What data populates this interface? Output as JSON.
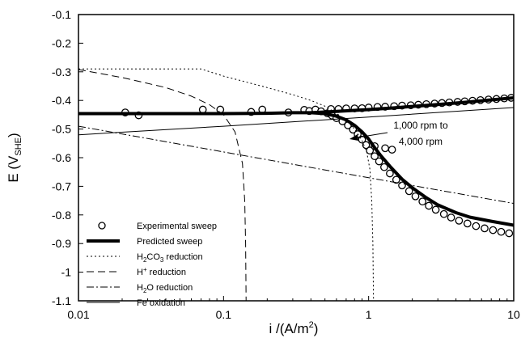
{
  "chart_data": {
    "type": "scatter",
    "xscale": "log",
    "xlim": [
      0.01,
      10
    ],
    "ylim": [
      -1.1,
      -0.1
    ],
    "xticks": [
      "0.01",
      "0.1",
      "1",
      "10"
    ],
    "yticks": [
      "-0.1",
      "-0.2",
      "-0.3",
      "-0.4",
      "-0.5",
      "-0.6",
      "-0.7",
      "-0.8",
      "-0.9",
      "-1",
      "-1.1"
    ],
    "xlabel": {
      "main": "i /(A/m",
      "sup": "2",
      "end": ")"
    },
    "ylabel": {
      "main": "E  (V",
      "sub": "SHE",
      "end": ")"
    },
    "grid": false,
    "legend_position": "lower-left",
    "annotation": {
      "line1": "1,000 rpm to",
      "line2": "4,000 rpm",
      "x": 1.3,
      "y": -0.575
    },
    "series": [
      {
        "name": "Experimental sweep",
        "style": "markers",
        "points": [
          [
            0.021,
            -0.442
          ],
          [
            0.026,
            -0.452
          ],
          [
            0.072,
            -0.432
          ],
          [
            0.095,
            -0.432
          ],
          [
            0.155,
            -0.44
          ],
          [
            0.185,
            -0.432
          ],
          [
            0.28,
            -0.442
          ],
          [
            0.36,
            -0.433
          ],
          [
            0.39,
            -0.437
          ],
          [
            0.43,
            -0.432
          ],
          [
            0.47,
            -0.438
          ],
          [
            0.52,
            -0.445
          ],
          [
            0.56,
            -0.453
          ],
          [
            0.6,
            -0.462
          ],
          [
            0.66,
            -0.473
          ],
          [
            0.72,
            -0.487
          ],
          [
            0.78,
            -0.502
          ],
          [
            0.84,
            -0.518
          ],
          [
            0.9,
            -0.537
          ],
          [
            0.96,
            -0.556
          ],
          [
            1.02,
            -0.575
          ],
          [
            1.1,
            -0.595
          ],
          [
            1.18,
            -0.613
          ],
          [
            1.28,
            -0.633
          ],
          [
            1.4,
            -0.655
          ],
          [
            1.55,
            -0.677
          ],
          [
            1.7,
            -0.697
          ],
          [
            1.9,
            -0.717
          ],
          [
            2.1,
            -0.735
          ],
          [
            2.35,
            -0.753
          ],
          [
            2.6,
            -0.768
          ],
          [
            2.9,
            -0.782
          ],
          [
            3.3,
            -0.797
          ],
          [
            3.7,
            -0.809
          ],
          [
            4.2,
            -0.82
          ],
          [
            4.8,
            -0.83
          ],
          [
            5.5,
            -0.839
          ],
          [
            6.3,
            -0.847
          ],
          [
            7.2,
            -0.853
          ],
          [
            8.2,
            -0.859
          ],
          [
            9.3,
            -0.864
          ],
          [
            1.1,
            -0.56
          ],
          [
            1.3,
            -0.567
          ],
          [
            1.45,
            -0.572
          ],
          [
            0.55,
            -0.43
          ],
          [
            0.62,
            -0.43
          ],
          [
            0.7,
            -0.428
          ],
          [
            0.8,
            -0.428
          ],
          [
            0.9,
            -0.427
          ],
          [
            1.0,
            -0.425
          ],
          [
            1.15,
            -0.423
          ],
          [
            1.3,
            -0.422
          ],
          [
            1.5,
            -0.42
          ],
          [
            1.7,
            -0.418
          ],
          [
            1.95,
            -0.417
          ],
          [
            2.2,
            -0.415
          ],
          [
            2.5,
            -0.413
          ],
          [
            2.85,
            -0.411
          ],
          [
            3.2,
            -0.409
          ],
          [
            3.6,
            -0.407
          ],
          [
            4.1,
            -0.405
          ],
          [
            4.6,
            -0.403
          ],
          [
            5.2,
            -0.401
          ],
          [
            5.9,
            -0.399
          ],
          [
            6.7,
            -0.397
          ],
          [
            7.6,
            -0.395
          ],
          [
            8.6,
            -0.393
          ],
          [
            9.6,
            -0.391
          ]
        ]
      },
      {
        "name": "Predicted sweep",
        "style": "thick",
        "points": [
          [
            0.01,
            -0.446
          ],
          [
            0.05,
            -0.446
          ],
          [
            0.1,
            -0.446
          ],
          [
            0.2,
            -0.445
          ],
          [
            0.3,
            -0.443
          ],
          [
            0.4,
            -0.443
          ],
          [
            0.5,
            -0.446
          ],
          [
            0.6,
            -0.455
          ],
          [
            0.7,
            -0.468
          ],
          [
            0.8,
            -0.487
          ],
          [
            0.9,
            -0.51
          ],
          [
            1.0,
            -0.535
          ],
          [
            1.1,
            -0.565
          ],
          [
            1.2,
            -0.59
          ],
          [
            1.4,
            -0.63
          ],
          [
            1.7,
            -0.675
          ],
          [
            2.0,
            -0.705
          ],
          [
            2.5,
            -0.74
          ],
          [
            3.0,
            -0.765
          ],
          [
            4.0,
            -0.792
          ],
          [
            5.0,
            -0.808
          ],
          [
            7.0,
            -0.822
          ],
          [
            10.0,
            -0.836
          ]
        ]
      },
      {
        "name": "Predicted sweep",
        "style": "thick",
        "points": [
          [
            0.4,
            -0.443
          ],
          [
            0.6,
            -0.438
          ],
          [
            1.0,
            -0.432
          ],
          [
            1.5,
            -0.426
          ],
          [
            2.0,
            -0.421
          ],
          [
            3.0,
            -0.414
          ],
          [
            5.0,
            -0.405
          ],
          [
            7.0,
            -0.398
          ],
          [
            10.0,
            -0.391
          ]
        ]
      },
      {
        "name": "H2CO3 reduction",
        "label_main": "H",
        "label_sub1": "2",
        "label_mid": "CO",
        "label_sub2": "3",
        "label_end": " reduction",
        "style": "dotted",
        "points": [
          [
            0.01,
            -0.29
          ],
          [
            0.02,
            -0.29
          ],
          [
            0.04,
            -0.29
          ],
          [
            0.07,
            -0.29
          ],
          [
            0.1,
            -0.315
          ],
          [
            0.2,
            -0.355
          ],
          [
            0.3,
            -0.38
          ],
          [
            0.4,
            -0.4
          ],
          [
            0.5,
            -0.42
          ],
          [
            0.6,
            -0.445
          ],
          [
            0.7,
            -0.47
          ],
          [
            0.8,
            -0.5
          ],
          [
            0.9,
            -0.54
          ],
          [
            0.97,
            -0.58
          ],
          [
            1.02,
            -0.64
          ],
          [
            1.05,
            -0.75
          ],
          [
            1.07,
            -0.9
          ],
          [
            1.08,
            -1.1
          ]
        ]
      },
      {
        "name": "H+ reduction",
        "label_main": "H",
        "label_sup": "+",
        "label_end": " reduction",
        "style": "dashed",
        "points": [
          [
            0.01,
            -0.292
          ],
          [
            0.02,
            -0.32
          ],
          [
            0.04,
            -0.355
          ],
          [
            0.06,
            -0.385
          ],
          [
            0.08,
            -0.415
          ],
          [
            0.1,
            -0.45
          ],
          [
            0.12,
            -0.51
          ],
          [
            0.135,
            -0.62
          ],
          [
            0.14,
            -0.75
          ],
          [
            0.142,
            -0.9
          ],
          [
            0.143,
            -1.1
          ]
        ]
      },
      {
        "name": "H2O reduction",
        "label_main": "H",
        "label_sub1": "2",
        "label_end": "O reduction",
        "style": "dashdot",
        "points": [
          [
            0.01,
            -0.49
          ],
          [
            0.1,
            -0.58
          ],
          [
            1.0,
            -0.67
          ],
          [
            10.0,
            -0.76
          ]
        ]
      },
      {
        "name": "Fe oxidation",
        "style": "thin",
        "points": [
          [
            0.01,
            -0.52
          ],
          [
            0.1,
            -0.49
          ],
          [
            1.0,
            -0.458
          ],
          [
            10.0,
            -0.425
          ]
        ]
      }
    ]
  }
}
